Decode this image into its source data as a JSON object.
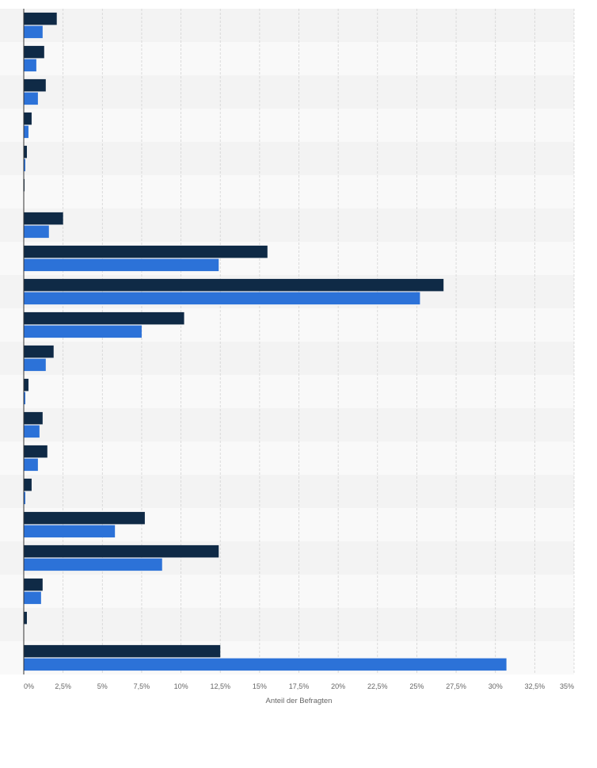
{
  "chart_data": {
    "type": "bar",
    "orientation": "horizontal",
    "title": "",
    "xlabel": "Anteil der Befragten",
    "ylabel": "",
    "xlim": [
      0,
      35
    ],
    "x_tick_labels": [
      "0%",
      "2,5%",
      "5%",
      "7,5%",
      "10%",
      "12,5%",
      "15%",
      "17,5%",
      "20%",
      "22,5%",
      "25%",
      "27,5%",
      "30%",
      "32,5%",
      "35%"
    ],
    "grid": true,
    "legend": "none",
    "categories": [
      "",
      "",
      "",
      "",
      "",
      "",
      "",
      "",
      "",
      "",
      "",
      "",
      "",
      "",
      "",
      "",
      "",
      "",
      "",
      ""
    ],
    "series": [
      {
        "color": "#0f2a46",
        "values": [
          2.1,
          1.3,
          1.4,
          0.5,
          0.2,
          0.05,
          2.5,
          15.5,
          26.7,
          10.2,
          1.9,
          0.3,
          1.2,
          1.5,
          0.5,
          7.7,
          12.4,
          1.2,
          0.2,
          12.5
        ]
      },
      {
        "color": "#2c72d8",
        "values": [
          1.2,
          0.8,
          0.9,
          0.3,
          0.1,
          0.0,
          1.6,
          12.4,
          25.2,
          7.5,
          1.4,
          0.1,
          1.0,
          0.9,
          0.1,
          5.8,
          8.8,
          1.1,
          0.0,
          30.7
        ]
      }
    ]
  }
}
